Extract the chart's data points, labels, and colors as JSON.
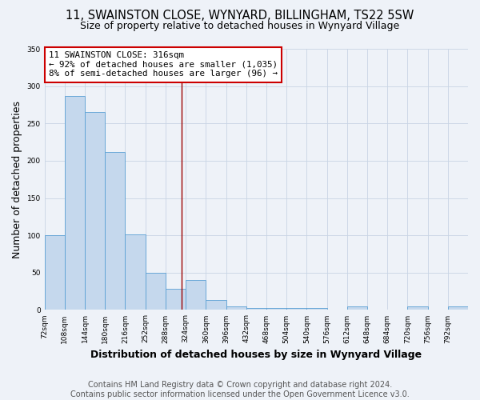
{
  "title": "11, SWAINSTON CLOSE, WYNYARD, BILLINGHAM, TS22 5SW",
  "subtitle": "Size of property relative to detached houses in Wynyard Village",
  "xlabel": "Distribution of detached houses by size in Wynyard Village",
  "ylabel": "Number of detached properties",
  "footnote1": "Contains HM Land Registry data © Crown copyright and database right 2024.",
  "footnote2": "Contains public sector information licensed under the Open Government Licence v3.0.",
  "annotation_line1": "11 SWAINSTON CLOSE: 316sqm",
  "annotation_line2": "← 92% of detached houses are smaller (1,035)",
  "annotation_line3": "8% of semi-detached houses are larger (96) →",
  "bin_edges": [
    72,
    108,
    144,
    180,
    216,
    252,
    288,
    324,
    360,
    396,
    432,
    468,
    504,
    540,
    576,
    612,
    648,
    684,
    720,
    756,
    792
  ],
  "bar_heights": [
    100,
    287,
    265,
    212,
    101,
    50,
    28,
    40,
    13,
    5,
    3,
    3,
    3,
    3,
    0,
    5,
    0,
    0,
    5,
    0,
    5
  ],
  "bar_color": "#c5d8ed",
  "bar_edge_color": "#5a9fd4",
  "vline_x": 316,
  "vline_color": "#990000",
  "ylim": [
    0,
    350
  ],
  "yticks": [
    0,
    50,
    100,
    150,
    200,
    250,
    300,
    350
  ],
  "bg_color": "#eef2f8",
  "grid_color": "#c8d4e4",
  "annotation_box_edgecolor": "#cc0000",
  "title_fontsize": 10.5,
  "subtitle_fontsize": 9,
  "axis_label_fontsize": 9,
  "footnote_fontsize": 7
}
